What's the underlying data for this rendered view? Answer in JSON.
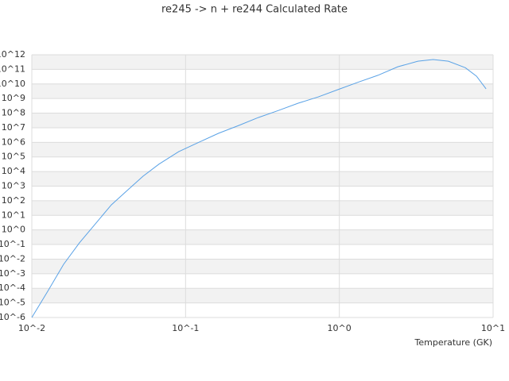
{
  "chart_data": {
    "type": "line",
    "title": "re245 -> n + re244 Calculated Rate",
    "xlabel": "Temperature (GK)",
    "log_x": true,
    "log_y": true,
    "grid": true,
    "bands": true,
    "x": [
      0.01,
      0.0127,
      0.0161,
      0.0204,
      0.0259,
      0.0329,
      0.0417,
      0.0529,
      0.0671,
      0.0902,
      0.1218,
      0.164,
      0.2206,
      0.297,
      0.4,
      0.54,
      0.73,
      0.98,
      1.32,
      1.78,
      2.4,
      3.24,
      4.07,
      5.12,
      6.6,
      7.8,
      9.0
    ],
    "series": [
      {
        "name": "rate",
        "color": "#5aa2e6",
        "values": [
          1e-06,
          6.3e-05,
          0.0044,
          0.13,
          2.6,
          52,
          500,
          4800,
          32000.0,
          230000.0,
          1000000.0,
          4200000.0,
          14000000.0,
          50000000.0,
          150000000.0,
          480000000.0,
          1300000000.0,
          4100000000.0,
          13000000000.0,
          39000000000.0,
          150000000000.0,
          360000000000.0,
          470000000000.0,
          360000000000.0,
          130000000000.0,
          34000000000.0,
          4600000000.0
        ]
      }
    ],
    "xlim": [
      0.01,
      10
    ],
    "xticks": [
      {
        "value": 0.01,
        "label": "10^-2"
      },
      {
        "value": 0.1,
        "label": "10^-1"
      },
      {
        "value": 1,
        "label": "10^0"
      },
      {
        "value": 10,
        "label": "10^1"
      }
    ],
    "ylim": [
      1e-06,
      1000000000000.0
    ],
    "yticks": [
      {
        "value": 1000000000000.0,
        "label": "10^12"
      },
      {
        "value": 100000000000.0,
        "label": "10^11"
      },
      {
        "value": 10000000000.0,
        "label": "10^10"
      },
      {
        "value": 1000000000.0,
        "label": "10^9"
      },
      {
        "value": 100000000.0,
        "label": "10^8"
      },
      {
        "value": 10000000.0,
        "label": "10^7"
      },
      {
        "value": 1000000.0,
        "label": "10^6"
      },
      {
        "value": 100000.0,
        "label": "10^5"
      },
      {
        "value": 10000.0,
        "label": "10^4"
      },
      {
        "value": 1000.0,
        "label": "10^3"
      },
      {
        "value": 100,
        "label": "10^2"
      },
      {
        "value": 10,
        "label": "10^1"
      },
      {
        "value": 1,
        "label": "10^0"
      },
      {
        "value": 0.1,
        "label": "10^-1"
      },
      {
        "value": 0.01,
        "label": "10^-2"
      },
      {
        "value": 0.001,
        "label": "10^-3"
      },
      {
        "value": 0.0001,
        "label": "10^-4"
      },
      {
        "value": 1e-05,
        "label": "10^-5"
      },
      {
        "value": 1e-06,
        "label": "10^-6"
      }
    ]
  }
}
